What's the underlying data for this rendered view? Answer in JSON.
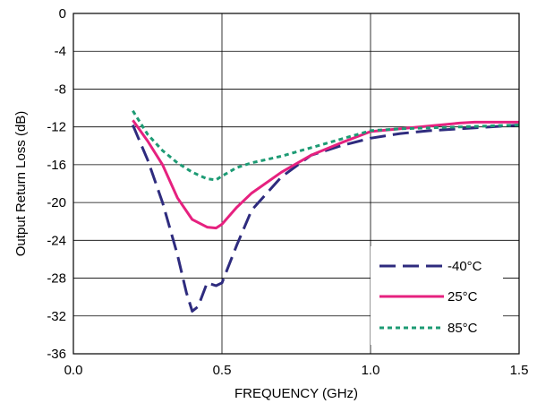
{
  "chart_data": {
    "type": "line",
    "title": "",
    "xlabel": "FREQUENCY (GHz)",
    "ylabel": "Output Return Loss (dB)",
    "xlim": [
      0,
      1.5
    ],
    "ylim": [
      -36,
      0
    ],
    "x_ticks": [
      "0.0",
      "0.5",
      "1.0",
      "1.5"
    ],
    "y_ticks": [
      "0",
      "-4",
      "-8",
      "-12",
      "-16",
      "-20",
      "-24",
      "-28",
      "-32",
      "-36"
    ],
    "grid": true,
    "legend_position": "bottom-right",
    "series": [
      {
        "name": "-40°C",
        "color": "#2e2b7e",
        "style": "long-dash",
        "x": [
          0.2,
          0.25,
          0.3,
          0.35,
          0.38,
          0.4,
          0.42,
          0.45,
          0.48,
          0.5,
          0.55,
          0.6,
          0.7,
          0.8,
          0.9,
          1.0,
          1.1,
          1.2,
          1.3,
          1.4,
          1.5
        ],
        "y": [
          -11.8,
          -15.5,
          -20.0,
          -25.5,
          -29.5,
          -31.5,
          -31.0,
          -28.5,
          -28.8,
          -28.5,
          -24.5,
          -20.8,
          -17.3,
          -15.0,
          -14.0,
          -13.2,
          -12.7,
          -12.4,
          -12.2,
          -12.0,
          -11.8
        ]
      },
      {
        "name": "25°C",
        "color": "#e6217f",
        "style": "solid",
        "x": [
          0.2,
          0.25,
          0.3,
          0.35,
          0.4,
          0.45,
          0.48,
          0.5,
          0.55,
          0.6,
          0.7,
          0.8,
          0.9,
          1.0,
          1.1,
          1.2,
          1.3,
          1.35,
          1.4,
          1.5
        ],
        "y": [
          -11.3,
          -13.5,
          -16.0,
          -19.5,
          -21.8,
          -22.6,
          -22.7,
          -22.3,
          -20.5,
          -19.0,
          -16.8,
          -15.0,
          -13.7,
          -12.5,
          -12.2,
          -11.9,
          -11.6,
          -11.5,
          -11.5,
          -11.5
        ]
      },
      {
        "name": "85°C",
        "color": "#1d9b74",
        "style": "dotted",
        "x": [
          0.2,
          0.25,
          0.3,
          0.35,
          0.4,
          0.45,
          0.48,
          0.5,
          0.55,
          0.6,
          0.7,
          0.8,
          0.9,
          1.0,
          1.1,
          1.2,
          1.3,
          1.4,
          1.5
        ],
        "y": [
          -10.3,
          -12.8,
          -14.5,
          -15.8,
          -16.8,
          -17.5,
          -17.6,
          -17.2,
          -16.3,
          -15.8,
          -15.1,
          -14.2,
          -13.3,
          -12.4,
          -12.2,
          -12.1,
          -12.0,
          -11.9,
          -11.8
        ]
      }
    ]
  }
}
